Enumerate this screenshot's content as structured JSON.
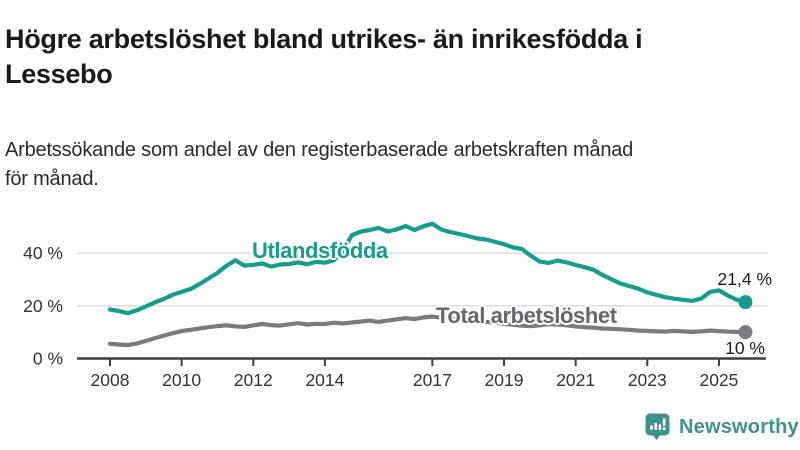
{
  "header": {
    "title": "Högre arbetslöshet bland utrikes- än inrikesfödda i\nLessebo",
    "subtitle": "Arbetssökande som andel av den registerbaserade arbetskraften månad\nför månad."
  },
  "chart_data": {
    "type": "line",
    "title": "Högre arbetslöshet bland utrikes- än inrikesfödda i Lessebo",
    "subtitle": "Arbetssökande som andel av den registerbaserade arbetskraften månad för månad.",
    "grid": "horizontal",
    "legend_position": "inline-labels",
    "x_axis": {
      "ticks": [
        2008,
        2010,
        2012,
        2014,
        2017,
        2019,
        2021,
        2023,
        2025
      ],
      "tick_labels": [
        "2008",
        "2010",
        "2012",
        "2014",
        "2017",
        "2019",
        "2021",
        "2023",
        "2025"
      ],
      "range": [
        2007.8,
        2026.2
      ]
    },
    "y_axis": {
      "ticks": [
        0,
        20,
        40
      ],
      "tick_labels": [
        "0 %",
        "20 %",
        "40 %"
      ],
      "tick_suffix": " %",
      "range": [
        0,
        55
      ]
    },
    "series": [
      {
        "id": "utlandsfodda",
        "name": "Utlandsfödda",
        "color": "#149D8F",
        "label_color": "#149D8F",
        "end_label": "21,4 %",
        "end_value": 21.4,
        "x": [
          2008.0,
          2008.25,
          2008.5,
          2008.75,
          2009.0,
          2009.25,
          2009.5,
          2009.75,
          2010.0,
          2010.25,
          2010.5,
          2010.75,
          2011.0,
          2011.25,
          2011.5,
          2011.75,
          2012.0,
          2012.25,
          2012.5,
          2012.75,
          2013.0,
          2013.25,
          2013.5,
          2013.75,
          2014.0,
          2014.25,
          2014.5,
          2014.75,
          2015.0,
          2015.25,
          2015.5,
          2015.75,
          2016.0,
          2016.25,
          2016.5,
          2016.75,
          2017.0,
          2017.25,
          2017.5,
          2017.75,
          2018.0,
          2018.25,
          2018.5,
          2018.75,
          2019.0,
          2019.25,
          2019.5,
          2019.75,
          2020.0,
          2020.25,
          2020.5,
          2020.75,
          2021.0,
          2021.25,
          2021.5,
          2021.75,
          2022.0,
          2022.25,
          2022.5,
          2022.75,
          2023.0,
          2023.25,
          2023.5,
          2023.75,
          2024.0,
          2024.25,
          2024.5,
          2024.75,
          2025.0,
          2025.25,
          2025.5,
          2025.74
        ],
        "values": [
          18.6,
          18.0,
          17.2,
          18.3,
          19.8,
          21.3,
          22.6,
          24.2,
          25.3,
          26.4,
          28.3,
          30.4,
          32.5,
          35.2,
          37.3,
          35.3,
          35.6,
          36.1,
          34.9,
          35.7,
          35.9,
          36.5,
          35.8,
          36.7,
          36.4,
          37.3,
          40.8,
          46.8,
          48.2,
          48.8,
          49.6,
          48.3,
          49.0,
          50.3,
          48.8,
          50.2,
          51.2,
          49.0,
          48.0,
          47.3,
          46.5,
          45.6,
          45.2,
          44.3,
          43.4,
          42.2,
          41.6,
          39.0,
          36.8,
          36.3,
          37.2,
          36.5,
          35.5,
          34.7,
          33.7,
          31.7,
          30.1,
          28.5,
          27.5,
          26.5,
          25.1,
          24.2,
          23.3,
          22.7,
          22.3,
          21.9,
          22.7,
          25.3,
          25.9,
          23.9,
          22.3,
          21.4
        ]
      },
      {
        "id": "total",
        "name": "Total arbetslöshet",
        "color": "#7B7B7F",
        "label_color": "#66666B",
        "end_label": "10 %",
        "end_value": 10.0,
        "x": [
          2008.0,
          2008.25,
          2008.5,
          2008.75,
          2009.0,
          2009.25,
          2009.5,
          2009.75,
          2010.0,
          2010.25,
          2010.5,
          2010.75,
          2011.0,
          2011.25,
          2011.5,
          2011.75,
          2012.0,
          2012.25,
          2012.5,
          2012.75,
          2013.0,
          2013.25,
          2013.5,
          2013.75,
          2014.0,
          2014.25,
          2014.5,
          2014.75,
          2015.0,
          2015.25,
          2015.5,
          2015.75,
          2016.0,
          2016.25,
          2016.5,
          2016.75,
          2017.0,
          2017.25,
          2017.5,
          2017.75,
          2018.0,
          2018.25,
          2018.5,
          2018.75,
          2019.0,
          2019.25,
          2019.5,
          2019.75,
          2020.0,
          2020.25,
          2020.5,
          2020.75,
          2021.0,
          2021.25,
          2021.5,
          2021.75,
          2022.0,
          2022.25,
          2022.5,
          2022.75,
          2023.0,
          2023.25,
          2023.5,
          2023.75,
          2024.0,
          2024.25,
          2024.5,
          2024.75,
          2025.0,
          2025.25,
          2025.5,
          2025.74
        ],
        "values": [
          5.6,
          5.3,
          5.1,
          5.7,
          6.7,
          7.7,
          8.7,
          9.6,
          10.4,
          10.9,
          11.4,
          11.9,
          12.3,
          12.6,
          12.2,
          12.0,
          12.6,
          13.1,
          12.7,
          12.5,
          13.0,
          13.4,
          12.9,
          13.2,
          13.1,
          13.6,
          13.3,
          13.7,
          14.0,
          14.4,
          13.9,
          14.4,
          14.9,
          15.3,
          15.0,
          15.6,
          15.9,
          15.5,
          15.2,
          14.9,
          14.6,
          14.2,
          13.9,
          13.6,
          13.2,
          12.8,
          12.5,
          12.3,
          12.6,
          13.1,
          12.9,
          12.6,
          12.2,
          11.9,
          11.7,
          11.4,
          11.3,
          11.1,
          10.9,
          10.6,
          10.5,
          10.3,
          10.2,
          10.5,
          10.3,
          10.1,
          10.3,
          10.6,
          10.4,
          10.2,
          10.1,
          10.0
        ]
      }
    ],
    "colors": {
      "axis": "#3F3F3F",
      "gridline": "#D9D9D9",
      "tick_text": "#333333"
    }
  },
  "footer": {
    "brand": "Newsworthy",
    "brand_color": "#3F918C",
    "logo_icon": "bar-chart-exclamation-bubble-icon"
  }
}
